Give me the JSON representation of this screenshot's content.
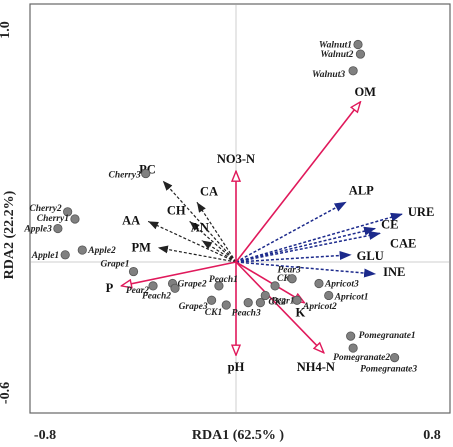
{
  "chart_data": {
    "type": "scatter",
    "subtype": "rda-triplot",
    "xlabel": "RDA1 (62.5% )",
    "ylabel": "RDA2 (22.2%)",
    "xlim": [
      -0.8,
      0.8
    ],
    "ylim": [
      -0.6,
      1.0
    ],
    "x_ticks": [
      "-0.8",
      "0.8"
    ],
    "y_ticks": [
      "1.0",
      "-0.6"
    ],
    "grid": false,
    "colors": {
      "environmental_vectors": "#e0195b",
      "response_vectors": "#1c2a8c",
      "minor_vectors": "#222222",
      "sample_points": "#808080",
      "reference_lines": "#cfcfcf"
    },
    "samples": [
      {
        "label": "Walnut1",
        "x": 0.5,
        "y": 0.91
      },
      {
        "label": "Walnut2",
        "x": 0.51,
        "y": 0.87
      },
      {
        "label": "Walnut3",
        "x": 0.48,
        "y": 0.8
      },
      {
        "label": "Cherry2",
        "x": -0.69,
        "y": 0.21
      },
      {
        "label": "Cherry1",
        "x": -0.66,
        "y": 0.18
      },
      {
        "label": "Apple3",
        "x": -0.73,
        "y": 0.14
      },
      {
        "label": "Apple1",
        "x": -0.7,
        "y": 0.03
      },
      {
        "label": "Apple2",
        "x": -0.63,
        "y": 0.05
      },
      {
        "label": "Cherry3",
        "x": -0.37,
        "y": 0.37
      },
      {
        "label": "Grape1",
        "x": -0.42,
        "y": -0.04
      },
      {
        "label": "Pear2",
        "x": -0.34,
        "y": -0.1
      },
      {
        "label": "Grape2",
        "x": -0.26,
        "y": -0.09
      },
      {
        "label": "Peach2",
        "x": -0.25,
        "y": -0.11
      },
      {
        "label": "Peach1",
        "x": -0.07,
        "y": -0.1
      },
      {
        "label": "Grape3",
        "x": -0.1,
        "y": -0.16
      },
      {
        "label": "CK1",
        "x": -0.04,
        "y": -0.18
      },
      {
        "label": "Peach3",
        "x": 0.05,
        "y": -0.17
      },
      {
        "label": "CK2",
        "x": 0.1,
        "y": -0.17
      },
      {
        "label": "Pear1",
        "x": 0.12,
        "y": -0.14
      },
      {
        "label": "CK3",
        "x": 0.16,
        "y": -0.1
      },
      {
        "label": "Pear3",
        "x": 0.23,
        "y": -0.07
      },
      {
        "label": "Apricot3",
        "x": 0.34,
        "y": -0.09
      },
      {
        "label": "Apricot2",
        "x": 0.25,
        "y": -0.16
      },
      {
        "label": "Apricot1",
        "x": 0.38,
        "y": -0.14
      },
      {
        "label": "Pomegranate1",
        "x": 0.47,
        "y": -0.31
      },
      {
        "label": "Pomegranate2",
        "x": 0.48,
        "y": -0.36
      },
      {
        "label": "Pomegranate3",
        "x": 0.65,
        "y": -0.4
      }
    ],
    "environmental_vectors": [
      {
        "label": "OM",
        "x": 0.51,
        "y": 0.67
      },
      {
        "label": "NO3-N",
        "x": 0.0,
        "y": 0.38
      },
      {
        "label": "P",
        "x": -0.47,
        "y": -0.1
      },
      {
        "label": "pH",
        "x": 0.0,
        "y": -0.39
      },
      {
        "label": "NH4-N",
        "x": 0.36,
        "y": -0.38
      },
      {
        "label": "K",
        "x": 0.28,
        "y": -0.17
      }
    ],
    "response_vectors": [
      {
        "label": "ALP",
        "x": 0.45,
        "y": 0.25
      },
      {
        "label": "URE",
        "x": 0.68,
        "y": 0.2
      },
      {
        "label": "CE",
        "x": 0.57,
        "y": 0.14
      },
      {
        "label": "CAE",
        "x": 0.59,
        "y": 0.12
      },
      {
        "label": "GLU",
        "x": 0.47,
        "y": 0.03
      },
      {
        "label": "INE",
        "x": 0.57,
        "y": -0.05
      }
    ],
    "minor_vectors": [
      {
        "label": "PC",
        "x": -0.3,
        "y": 0.34
      },
      {
        "label": "CA",
        "x": -0.16,
        "y": 0.25
      },
      {
        "label": "CH",
        "x": -0.19,
        "y": 0.17
      },
      {
        "label": "AA",
        "x": -0.36,
        "y": 0.17
      },
      {
        "label": "AN",
        "x": -0.14,
        "y": 0.09
      },
      {
        "label": "PM",
        "x": -0.32,
        "y": 0.06
      }
    ]
  }
}
